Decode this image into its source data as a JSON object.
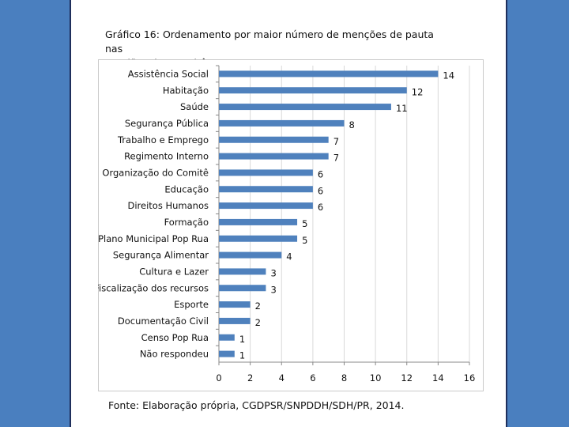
{
  "colors": {
    "side_bar": "#4a7fbf",
    "bar_fill": "#4f81bd",
    "grid": "#d9d9d9",
    "axis": "#888888"
  },
  "header": {
    "title_line1": "Gráfico 16: Ordenamento por maior número de menções de pauta nas",
    "title_line2": "reuniões dos Comitês"
  },
  "footer": {
    "source": "Fonte: Elaboração própria, CGDPSR/SNPDDH/SDH/PR, 2014."
  },
  "chart_data": {
    "type": "bar",
    "orientation": "horizontal",
    "categories": [
      "Assistência Social",
      "Habitação",
      "Saúde",
      "Segurança Pública",
      "Trabalho e Emprego",
      "Regimento Interno",
      "Organização do Comitê",
      "Educação",
      "Direitos Humanos",
      "Formação",
      "Plano Municipal Pop Rua",
      "Segurança Alimentar",
      "Cultura e Lazer",
      "Fiscalização dos recursos",
      "Esporte",
      "Documentação Civil",
      "Censo Pop Rua",
      "Não respondeu"
    ],
    "values": [
      14,
      12,
      11,
      8,
      7,
      7,
      6,
      6,
      6,
      5,
      5,
      4,
      3,
      3,
      2,
      2,
      1,
      1
    ],
    "xlim": [
      0,
      16
    ],
    "xticks": [
      0,
      2,
      4,
      6,
      8,
      10,
      12,
      14,
      16
    ],
    "grid": true,
    "data_labels": true
  }
}
